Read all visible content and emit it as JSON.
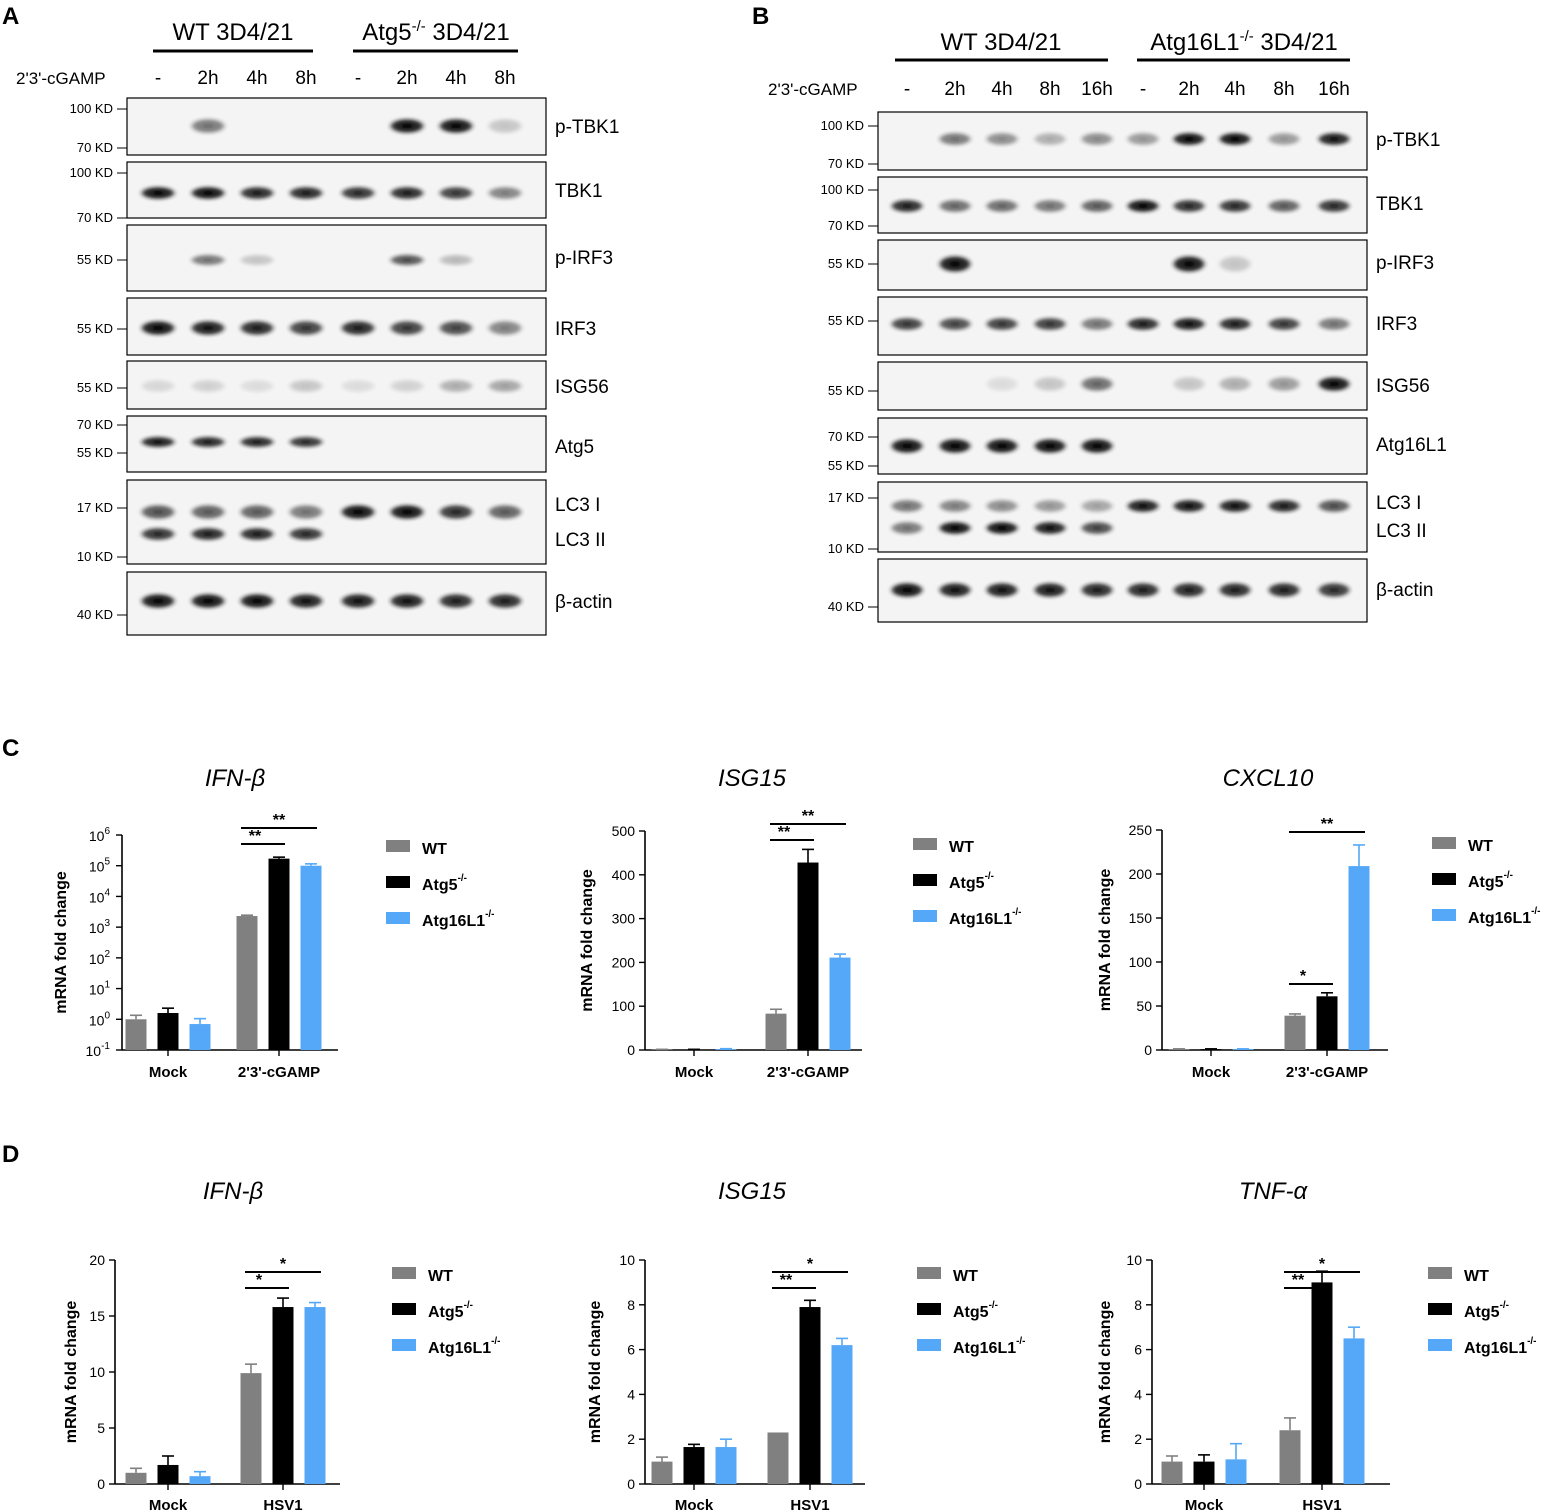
{
  "colors": {
    "wt": "#808080",
    "atg5": "#000000",
    "atg16l1": "#55a8f7"
  },
  "legend_sup": "-/-",
  "blotA": {
    "letter": "A",
    "treatment": "2'3'-cGAMP",
    "groups": [
      {
        "label": "WT 3D4/21",
        "sup": ""
      },
      {
        "label": "Atg5",
        "sup": "-/-",
        "suffix": " 3D4/21"
      }
    ],
    "lanes": [
      "-",
      "2h",
      "4h",
      "8h",
      "-",
      "2h",
      "4h",
      "8h"
    ],
    "proteins": [
      "p-TBK1",
      "TBK1",
      "p-IRF3",
      "IRF3",
      "ISG56",
      "Atg5",
      "LC3 I",
      "LC3 II",
      "β-actin"
    ],
    "markers": [
      "100 KD",
      "70 KD",
      "100 KD",
      "70 KD",
      "55 KD",
      "55 KD",
      "55 KD",
      "70 KD",
      "55 KD",
      "17 KD",
      "10 KD",
      "40 KD"
    ]
  },
  "blotB": {
    "letter": "B",
    "treatment": "2'3'-cGAMP",
    "groups": [
      {
        "label": "WT 3D4/21",
        "sup": ""
      },
      {
        "label": "Atg16L1",
        "sup": "-/-",
        "suffix": " 3D4/21"
      }
    ],
    "lanes": [
      "-",
      "2h",
      "4h",
      "8h",
      "16h",
      "-",
      "2h",
      "4h",
      "8h",
      "16h"
    ],
    "proteins": [
      "p-TBK1",
      "TBK1",
      "p-IRF3",
      "IRF3",
      "ISG56",
      "Atg16L1",
      "LC3 I",
      "LC3 II",
      "β-actin"
    ],
    "markers": [
      "100 KD",
      "70 KD",
      "100 KD",
      "70 KD",
      "55 KD",
      "55 KD",
      "55 KD",
      "70 KD",
      "55 KD",
      "17 KD",
      "10 KD",
      "40 KD"
    ]
  },
  "panelC": {
    "letter": "C"
  },
  "panelD": {
    "letter": "D"
  },
  "chart_data": [
    {
      "type": "bar",
      "panel": "C",
      "title": "IFN-β",
      "ylabel": "mRNA fold change",
      "yscale": "log",
      "ylim": [
        0.1,
        1000000
      ],
      "yticks": [
        "10-1",
        "100",
        "101",
        "102",
        "103",
        "104",
        "105",
        "106"
      ],
      "categories": [
        "Mock",
        "2'3'-cGAMP"
      ],
      "series": [
        {
          "name": "WT",
          "values": [
            1.0,
            2300
          ],
          "errors": [
            0.35,
            150
          ]
        },
        {
          "name": "Atg5",
          "values": [
            1.6,
            170000
          ],
          "errors": [
            0.7,
            20000
          ]
        },
        {
          "name": "Atg16L1",
          "values": [
            0.7,
            100000
          ],
          "errors": [
            0.35,
            15000
          ]
        }
      ],
      "significance": [
        {
          "category": 1,
          "from": 0,
          "to": 1,
          "label": "**"
        },
        {
          "category": 1,
          "from": 0,
          "to": 2,
          "label": "**"
        }
      ]
    },
    {
      "type": "bar",
      "panel": "C",
      "title": "ISG15",
      "ylabel": "mRNA fold change",
      "ylim": [
        0,
        500
      ],
      "yticks": [
        0,
        100,
        200,
        300,
        400,
        500
      ],
      "categories": [
        "Mock",
        "2'3'-cGAMP"
      ],
      "series": [
        {
          "name": "WT",
          "values": [
            1,
            83
          ],
          "errors": [
            0.5,
            10
          ]
        },
        {
          "name": "Atg5",
          "values": [
            1,
            428
          ],
          "errors": [
            0.5,
            30
          ]
        },
        {
          "name": "Atg16L1",
          "values": [
            2,
            211
          ],
          "errors": [
            1,
            8
          ]
        }
      ],
      "significance": [
        {
          "category": 1,
          "from": 0,
          "to": 1,
          "label": "**"
        },
        {
          "category": 1,
          "from": 0,
          "to": 2,
          "label": "**"
        }
      ]
    },
    {
      "type": "bar",
      "panel": "C",
      "title": "CXCL10",
      "ylabel": "mRNA fold change",
      "ylim": [
        0,
        250
      ],
      "yticks": [
        0,
        50,
        100,
        150,
        200,
        250
      ],
      "categories": [
        "Mock",
        "2'3'-cGAMP"
      ],
      "series": [
        {
          "name": "WT",
          "values": [
            1,
            39
          ],
          "errors": [
            0.3,
            2
          ]
        },
        {
          "name": "Atg5",
          "values": [
            1,
            61
          ],
          "errors": [
            0.3,
            4
          ]
        },
        {
          "name": "Atg16L1",
          "values": [
            1,
            209
          ],
          "errors": [
            0.3,
            24
          ]
        }
      ],
      "significance": [
        {
          "category": 1,
          "from": 0,
          "to": 1,
          "label": "*"
        },
        {
          "category": 1,
          "from": 0,
          "to": 2,
          "label": "**"
        }
      ]
    },
    {
      "type": "bar",
      "panel": "D",
      "title": "IFN-β",
      "ylabel": "mRNA fold change",
      "ylim": [
        0,
        20
      ],
      "yticks": [
        0,
        5,
        10,
        15,
        20
      ],
      "categories": [
        "Mock",
        "HSV1"
      ],
      "series": [
        {
          "name": "WT",
          "values": [
            1.0,
            9.9
          ],
          "errors": [
            0.4,
            0.8
          ]
        },
        {
          "name": "Atg5",
          "values": [
            1.7,
            15.8
          ],
          "errors": [
            0.8,
            0.8
          ]
        },
        {
          "name": "Atg16L1",
          "values": [
            0.7,
            15.8
          ],
          "errors": [
            0.4,
            0.4
          ]
        }
      ],
      "significance": [
        {
          "category": 1,
          "from": 0,
          "to": 1,
          "label": "*"
        },
        {
          "category": 1,
          "from": 0,
          "to": 2,
          "label": "*"
        }
      ]
    },
    {
      "type": "bar",
      "panel": "D",
      "title": "ISG15",
      "ylabel": "mRNA fold change",
      "ylim": [
        0,
        10
      ],
      "yticks": [
        0,
        2,
        4,
        6,
        8,
        10
      ],
      "categories": [
        "Mock",
        "HSV1"
      ],
      "series": [
        {
          "name": "WT",
          "values": [
            1.0,
            2.3
          ],
          "errors": [
            0.2,
            0
          ]
        },
        {
          "name": "Atg5",
          "values": [
            1.65,
            7.9
          ],
          "errors": [
            0.12,
            0.3
          ]
        },
        {
          "name": "Atg16L1",
          "values": [
            1.65,
            6.2
          ],
          "errors": [
            0.35,
            0.3
          ]
        }
      ],
      "significance": [
        {
          "category": 1,
          "from": 0,
          "to": 1,
          "label": "**"
        },
        {
          "category": 1,
          "from": 0,
          "to": 2,
          "label": "*"
        }
      ]
    },
    {
      "type": "bar",
      "panel": "D",
      "title": "TNF-α",
      "ylabel": "mRNA fold change",
      "ylim": [
        0,
        10
      ],
      "yticks": [
        0,
        2,
        4,
        6,
        8,
        10
      ],
      "categories": [
        "Mock",
        "HSV1"
      ],
      "series": [
        {
          "name": "WT",
          "values": [
            1.0,
            2.4
          ],
          "errors": [
            0.25,
            0.55
          ]
        },
        {
          "name": "Atg5",
          "values": [
            1.0,
            9.0
          ],
          "errors": [
            0.3,
            0.5
          ]
        },
        {
          "name": "Atg16L1",
          "values": [
            1.1,
            6.5
          ],
          "errors": [
            0.7,
            0.5
          ]
        }
      ],
      "significance": [
        {
          "category": 1,
          "from": 0,
          "to": 1,
          "label": "**"
        },
        {
          "category": 1,
          "from": 0,
          "to": 2,
          "label": "*"
        }
      ]
    }
  ]
}
